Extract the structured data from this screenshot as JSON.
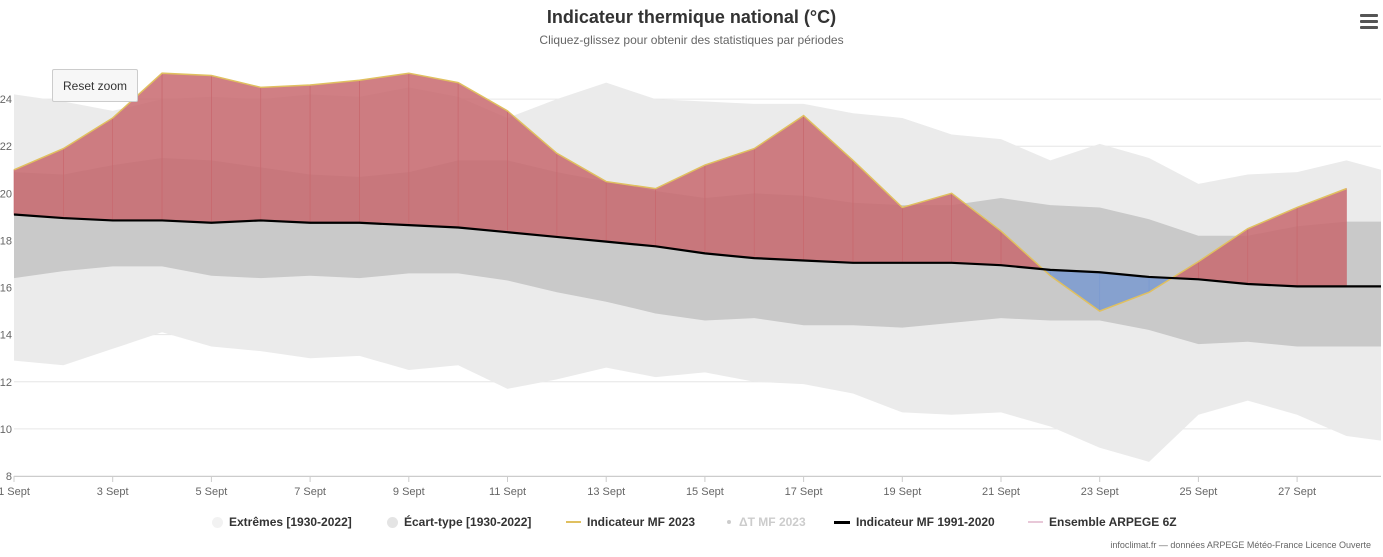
{
  "header": {
    "title": "Indicateur thermique national (°C)",
    "subtitle": "Cliquez-glissez pour obtenir des statistiques par périodes"
  },
  "toolbar": {
    "reset_zoom_label": "Reset zoom",
    "menu_icon": "hamburger-menu-icon"
  },
  "legend": {
    "items": [
      {
        "label": "Extrêmes [1930-2022]",
        "symbol": "circle",
        "color": "#f0f0f0",
        "muted": false
      },
      {
        "label": "Écart-type [1930-2022]",
        "symbol": "circle",
        "color": "#e6e6e6",
        "muted": false
      },
      {
        "label": "Indicateur MF 2023",
        "symbol": "line",
        "color": "#e0c060",
        "muted": false
      },
      {
        "label": "ΔT MF 2023",
        "symbol": "dot",
        "color": "#cccccc",
        "muted": true
      },
      {
        "label": "Indicateur MF 1991-2020",
        "symbol": "line",
        "color": "#000000",
        "muted": false
      },
      {
        "label": "Ensemble ARPEGE 6Z",
        "symbol": "line",
        "color": "#e8c8d8",
        "muted": false
      }
    ]
  },
  "credits": "infoclimat.fr — données ARPEGE Météo-France Licence Ouverte",
  "colors": {
    "extremes_band": "#ebebeb",
    "stddev_band": "#c9c9c9",
    "warm_anomaly": "#c8686e",
    "cold_anomaly": "#7a9ad0",
    "indicator_2023_line": "#e0c060",
    "normal_line": "#000000",
    "gridline": "#e6e6e6"
  },
  "chart_data": {
    "type": "area",
    "title": "Indicateur thermique national (°C)",
    "subtitle": "Cliquez-glissez pour obtenir des statistiques par périodes",
    "xlabel": "",
    "ylabel": "",
    "x": [
      1,
      2,
      3,
      4,
      5,
      6,
      7,
      8,
      9,
      10,
      11,
      12,
      13,
      14,
      15,
      16,
      17,
      18,
      19,
      20,
      21,
      22,
      23,
      24,
      25,
      26,
      27,
      28,
      28.7
    ],
    "xlim": [
      1,
      28.7
    ],
    "ylim": [
      8,
      26
    ],
    "x_ticks": [
      1,
      3,
      5,
      7,
      9,
      11,
      13,
      15,
      17,
      19,
      21,
      23,
      25,
      27
    ],
    "x_tick_labels": [
      "1 Sept",
      "3 Sept",
      "5 Sept",
      "7 Sept",
      "9 Sept",
      "11 Sept",
      "13 Sept",
      "15 Sept",
      "17 Sept",
      "19 Sept",
      "21 Sept",
      "23 Sept",
      "25 Sept",
      "27 Sept"
    ],
    "y_ticks": [
      8,
      10,
      12,
      14,
      16,
      18,
      20,
      22,
      24
    ],
    "grid": true,
    "series": [
      {
        "name": "Extrêmes [1930-2022] (max)",
        "values": [
          24.2,
          23.9,
          23.5,
          24.0,
          24.1,
          24.0,
          24.2,
          24.1,
          24.5,
          24.1,
          23.2,
          24.0,
          24.7,
          24.0,
          23.9,
          23.8,
          23.8,
          23.4,
          23.2,
          22.5,
          22.3,
          21.4,
          22.1,
          21.5,
          20.4,
          20.8,
          20.9,
          21.4,
          21.0
        ]
      },
      {
        "name": "Extrêmes [1930-2022] (min)",
        "values": [
          12.9,
          12.7,
          13.4,
          14.1,
          13.5,
          13.3,
          13.0,
          13.1,
          12.5,
          12.7,
          11.7,
          12.1,
          12.6,
          12.2,
          12.4,
          12.0,
          11.9,
          11.5,
          10.7,
          10.6,
          10.7,
          10.1,
          9.2,
          8.6,
          10.6,
          11.2,
          10.6,
          9.7,
          9.5
        ]
      },
      {
        "name": "Écart-type [1930-2022] (haut)",
        "values": [
          20.9,
          20.8,
          21.2,
          21.5,
          21.4,
          21.1,
          20.8,
          20.7,
          20.9,
          21.4,
          21.4,
          20.9,
          20.5,
          20.1,
          19.8,
          20.0,
          19.9,
          19.6,
          19.5,
          19.5,
          19.8,
          19.5,
          19.4,
          18.9,
          18.2,
          18.2,
          18.6,
          18.8,
          18.8
        ]
      },
      {
        "name": "Écart-type [1930-2022] (bas)",
        "values": [
          16.4,
          16.7,
          16.9,
          16.9,
          16.5,
          16.4,
          16.5,
          16.4,
          16.6,
          16.6,
          16.3,
          15.8,
          15.4,
          14.9,
          14.6,
          14.7,
          14.4,
          14.4,
          14.3,
          14.5,
          14.7,
          14.6,
          14.6,
          14.2,
          13.6,
          13.7,
          13.5,
          13.5,
          13.5
        ]
      },
      {
        "name": "Indicateur MF 2023",
        "values": [
          21.0,
          21.9,
          23.2,
          25.1,
          25.0,
          24.5,
          24.6,
          24.8,
          25.1,
          24.7,
          23.5,
          21.7,
          20.5,
          20.2,
          21.2,
          21.9,
          23.3,
          21.4,
          19.4,
          20.0,
          18.4,
          16.5,
          15.0,
          15.8,
          17.1,
          18.5,
          19.4,
          20.2,
          null
        ]
      },
      {
        "name": "Indicateur MF 1991-2020",
        "values": [
          19.1,
          18.95,
          18.85,
          18.85,
          18.75,
          18.85,
          18.75,
          18.75,
          18.65,
          18.55,
          18.35,
          18.15,
          17.95,
          17.75,
          17.45,
          17.25,
          17.15,
          17.05,
          17.05,
          17.05,
          16.95,
          16.75,
          16.65,
          16.45,
          16.35,
          16.15,
          16.05,
          16.05,
          16.05
        ]
      }
    ]
  }
}
